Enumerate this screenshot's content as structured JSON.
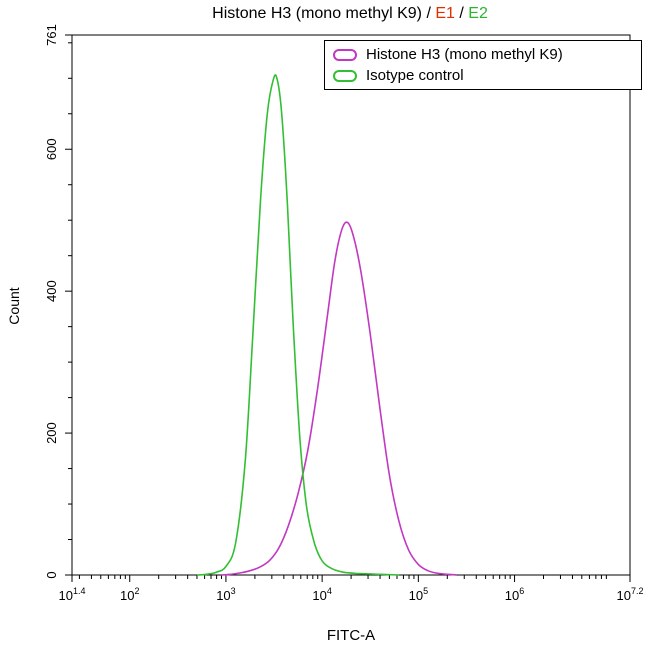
{
  "title": {
    "parts": [
      {
        "text": "Histone H3 (mono methyl K9) / ",
        "color": "#000000"
      },
      {
        "text": "E1",
        "color": "#e03000"
      },
      {
        "text": " / ",
        "color": "#000000"
      },
      {
        "text": "E2",
        "color": "#2fb42f"
      }
    ]
  },
  "legend": {
    "entries": [
      {
        "label": "Histone H3 (mono methyl K9)",
        "color": "#c238c2"
      },
      {
        "label": "Isotype control",
        "color": "#33bf33"
      }
    ]
  },
  "chart_data": {
    "type": "line",
    "title": "Histone H3 (mono methyl K9) / E1 / E2",
    "xlabel": "FITC-A",
    "ylabel": "Count",
    "x_scale": "log10",
    "xlim_log10": [
      1.4,
      7.2
    ],
    "ylim": [
      0,
      761
    ],
    "grid": false,
    "legend_position": "top-right",
    "y_major_ticks": [
      0,
      200,
      400,
      600,
      761
    ],
    "y_minor_step": 50,
    "x_major_ticks": [
      {
        "log10": 1.4,
        "base": "10",
        "exp": "1.4"
      },
      {
        "log10": 2,
        "base": "10",
        "exp": "2"
      },
      {
        "log10": 3,
        "base": "10",
        "exp": "3"
      },
      {
        "log10": 4,
        "base": "10",
        "exp": "4"
      },
      {
        "log10": 5,
        "base": "10",
        "exp": "5"
      },
      {
        "log10": 6,
        "base": "10",
        "exp": "6"
      },
      {
        "log10": 7.2,
        "base": "10",
        "exp": "7.2"
      }
    ],
    "series": [
      {
        "name": "Histone H3 (mono methyl K9)",
        "color": "#c238c2",
        "peak_logx": 4.26,
        "peak_count": 497,
        "points": [
          [
            2.95,
            0
          ],
          [
            3.05,
            1
          ],
          [
            3.15,
            3
          ],
          [
            3.25,
            6
          ],
          [
            3.35,
            11
          ],
          [
            3.45,
            20
          ],
          [
            3.55,
            38
          ],
          [
            3.65,
            70
          ],
          [
            3.75,
            115
          ],
          [
            3.85,
            175
          ],
          [
            3.95,
            260
          ],
          [
            4.05,
            360
          ],
          [
            4.13,
            440
          ],
          [
            4.2,
            485
          ],
          [
            4.26,
            497
          ],
          [
            4.32,
            480
          ],
          [
            4.4,
            430
          ],
          [
            4.5,
            340
          ],
          [
            4.6,
            235
          ],
          [
            4.7,
            140
          ],
          [
            4.8,
            75
          ],
          [
            4.9,
            35
          ],
          [
            5.0,
            15
          ],
          [
            5.1,
            6
          ],
          [
            5.22,
            2
          ],
          [
            5.4,
            0
          ]
        ]
      },
      {
        "name": "Isotype control",
        "color": "#33bf33",
        "peak_logx": 3.51,
        "peak_count": 700,
        "points": [
          [
            2.7,
            0
          ],
          [
            2.8,
            1
          ],
          [
            2.9,
            4
          ],
          [
            3.0,
            12
          ],
          [
            3.1,
            45
          ],
          [
            3.2,
            160
          ],
          [
            3.28,
            340
          ],
          [
            3.36,
            530
          ],
          [
            3.43,
            650
          ],
          [
            3.49,
            697
          ],
          [
            3.53,
            700
          ],
          [
            3.58,
            650
          ],
          [
            3.64,
            520
          ],
          [
            3.7,
            350
          ],
          [
            3.77,
            190
          ],
          [
            3.84,
            95
          ],
          [
            3.92,
            45
          ],
          [
            4.0,
            20
          ],
          [
            4.1,
            9
          ],
          [
            4.22,
            4
          ],
          [
            4.38,
            2
          ],
          [
            4.6,
            1
          ],
          [
            4.8,
            0
          ]
        ]
      }
    ]
  }
}
